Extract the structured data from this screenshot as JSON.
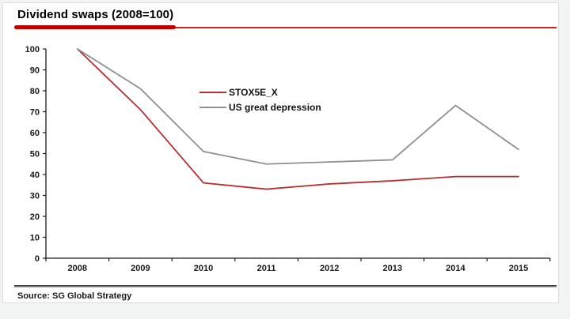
{
  "title": "Dividend swaps (2008=100)",
  "source": "Source: SG Global Strategy",
  "colors": {
    "accent_red": "#c00000",
    "series_red": "#b82e2e",
    "series_gray": "#8f8f8f",
    "axis": "#1a1a1a",
    "panel_bg": "#ffffff",
    "frame_bg": "#f2f3f3"
  },
  "chart_data": {
    "type": "line",
    "title": "Dividend swaps (2008=100)",
    "categories": [
      "2008",
      "2009",
      "2010",
      "2011",
      "2012",
      "2013",
      "2014",
      "2015"
    ],
    "series": [
      {
        "name": "STOX5E_X",
        "color": "#b82e2e",
        "values": [
          100,
          71,
          36,
          33,
          35.5,
          37,
          39,
          39
        ]
      },
      {
        "name": "US great depression",
        "color": "#8f8f8f",
        "values": [
          100,
          81,
          51,
          45,
          46,
          47,
          73,
          52
        ]
      }
    ],
    "xlabel": "",
    "ylabel": "",
    "ylim": [
      0,
      100
    ],
    "y_ticks": [
      0,
      10,
      20,
      30,
      40,
      50,
      60,
      70,
      80,
      90,
      100
    ],
    "grid": false,
    "legend_position": "inside-top-center"
  }
}
